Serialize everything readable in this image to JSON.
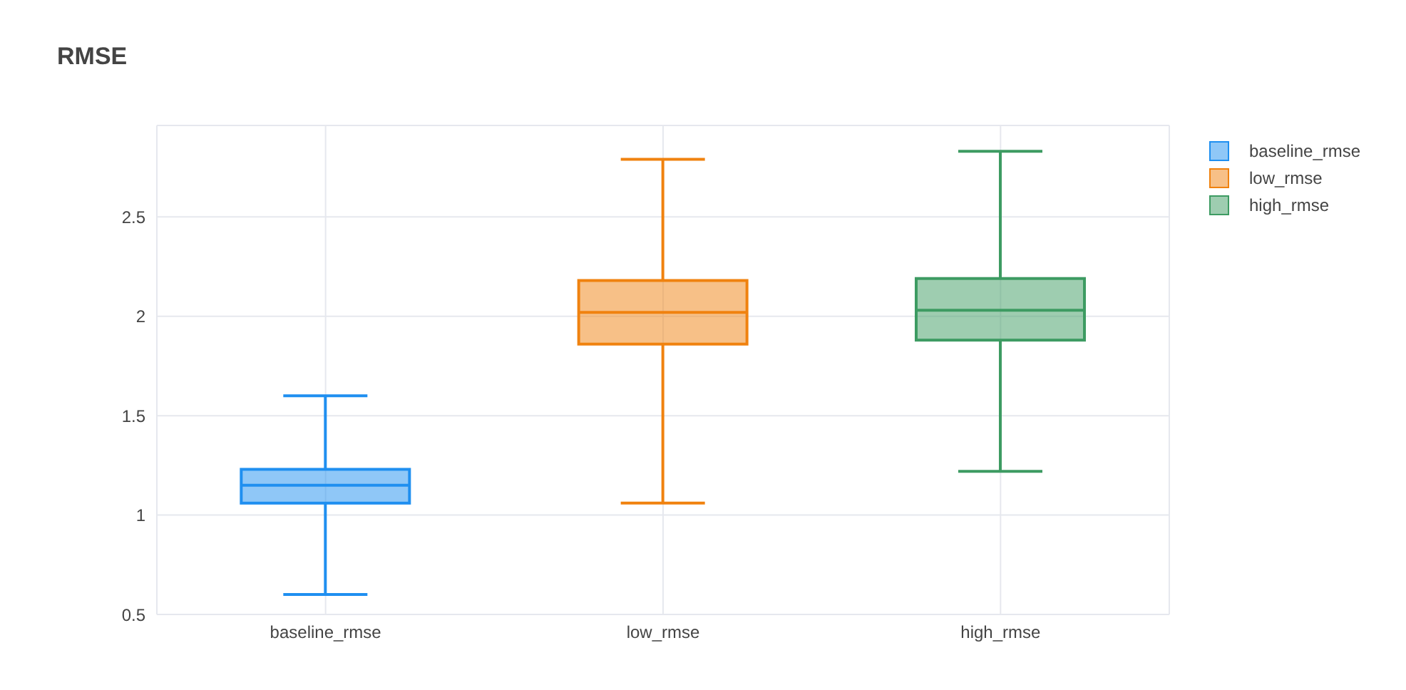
{
  "chart_data": {
    "type": "box",
    "title": "RMSE",
    "categories": [
      "baseline_rmse",
      "low_rmse",
      "high_rmse"
    ],
    "series": [
      {
        "name": "baseline_rmse",
        "color": "#1f8ff0",
        "boxes": [
          {
            "low": 0.6,
            "q1": 1.06,
            "median": 1.15,
            "q3": 1.23,
            "high": 1.6
          },
          null,
          null
        ]
      },
      {
        "name": "low_rmse",
        "color": "#f0820f",
        "boxes": [
          null,
          {
            "low": 1.06,
            "q1": 1.86,
            "median": 2.02,
            "q3": 2.18,
            "high": 2.79
          },
          null
        ]
      },
      {
        "name": "high_rmse",
        "color": "#3d9b62",
        "boxes": [
          null,
          null,
          {
            "low": 1.22,
            "q1": 1.88,
            "median": 2.03,
            "q3": 2.19,
            "high": 2.83
          }
        ]
      }
    ],
    "ylim": [
      0.5,
      2.96
    ],
    "yticks": [
      0.5,
      1,
      1.5,
      2,
      2.5
    ],
    "grid": true,
    "legend": "top right"
  }
}
